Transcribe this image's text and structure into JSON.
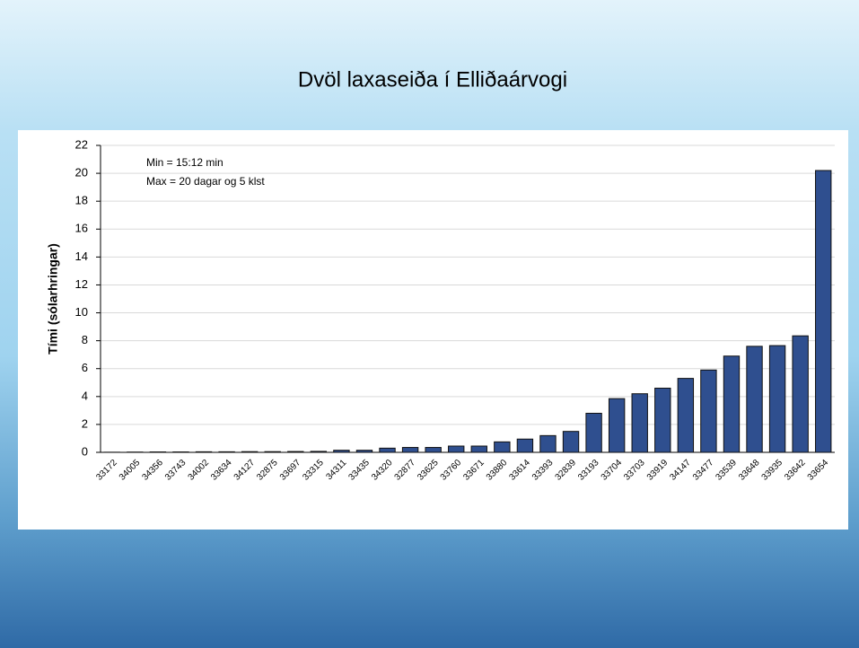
{
  "chart_data": {
    "type": "bar",
    "title": "Dvöl laxaseiða í Elliðaárvogi",
    "y_label": "Tími (sólarhringar)",
    "annotations": [
      "Min = 15:12 min",
      "Max = 20 dagar og 5 klst"
    ],
    "categories": [
      "33172",
      "34005",
      "34356",
      "33743",
      "34002",
      "33634",
      "34127",
      "32875",
      "33697",
      "33315",
      "34311",
      "33435",
      "34320",
      "32877",
      "33625",
      "33760",
      "33671",
      "33880",
      "33614",
      "33393",
      "32839",
      "33193",
      "33704",
      "33703",
      "33919",
      "34147",
      "33477",
      "33539",
      "33648",
      "33935",
      "33642",
      "33654"
    ],
    "values": [
      0.01,
      0.02,
      0.03,
      0.03,
      0.04,
      0.04,
      0.05,
      0.05,
      0.06,
      0.07,
      0.15,
      0.15,
      0.3,
      0.35,
      0.35,
      0.45,
      0.45,
      0.75,
      0.95,
      1.2,
      1.5,
      2.8,
      3.85,
      4.2,
      4.6,
      5.3,
      5.9,
      6.9,
      7.6,
      7.65,
      8.35,
      20.2
    ],
    "color": "#2f4f8f",
    "ylim": [
      0,
      22
    ],
    "yticks": [
      0,
      2,
      4,
      6,
      8,
      10,
      12,
      14,
      16,
      18,
      20,
      22
    ],
    "grid": true
  }
}
